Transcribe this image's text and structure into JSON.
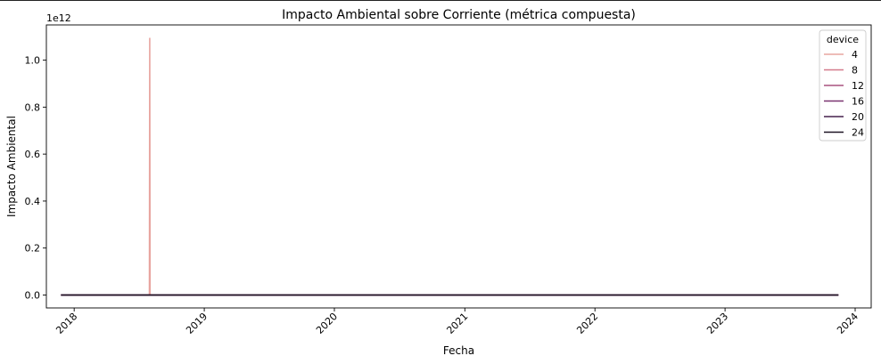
{
  "chart_data": {
    "type": "line",
    "title": "Impacto Ambiental sobre Corriente (métrica compuesta)",
    "xlabel": "Fecha",
    "ylabel": "Impacto Ambiental",
    "y_offset_label": "1e12",
    "x_ticks": [
      "2018",
      "2019",
      "2020",
      "2021",
      "2022",
      "2023",
      "2024"
    ],
    "y_ticks": [
      "0.0",
      "0.2",
      "0.4",
      "0.6",
      "0.8",
      "1.0"
    ],
    "xlim": [
      "2017-10-15",
      "2024-02-15"
    ],
    "ylim": [
      -0.055,
      1.15
    ],
    "y_units_scale": 1000000000000.0,
    "grid": false,
    "legend": {
      "title": "device",
      "placement": "top-right"
    },
    "series": [
      {
        "name": "4",
        "color": "#e8a5a0",
        "points": [
          [
            "2017-11-25",
            0.0
          ],
          [
            "2018-07-31",
            0.0
          ],
          [
            "2018-08-01",
            1.095
          ],
          [
            "2018-08-02",
            0.0
          ],
          [
            "2023-11-15",
            0.0
          ]
        ]
      },
      {
        "name": "8",
        "color": "#d47a8c",
        "points": [
          [
            "2017-11-25",
            0.0
          ],
          [
            "2023-11-15",
            0.0
          ]
        ]
      },
      {
        "name": "12",
        "color": "#a8527e",
        "points": [
          [
            "2017-11-25",
            0.0
          ],
          [
            "2023-11-15",
            0.0
          ]
        ]
      },
      {
        "name": "16",
        "color": "#7a3470",
        "points": [
          [
            "2017-11-25",
            0.0
          ],
          [
            "2023-11-15",
            0.0
          ]
        ]
      },
      {
        "name": "20",
        "color": "#45204d",
        "points": [
          [
            "2017-11-25",
            0.0
          ],
          [
            "2023-11-15",
            0.0
          ]
        ]
      },
      {
        "name": "24",
        "color": "#1e1424",
        "points": [
          [
            "2017-11-25",
            0.0
          ],
          [
            "2023-11-15",
            0.0
          ]
        ]
      }
    ]
  }
}
